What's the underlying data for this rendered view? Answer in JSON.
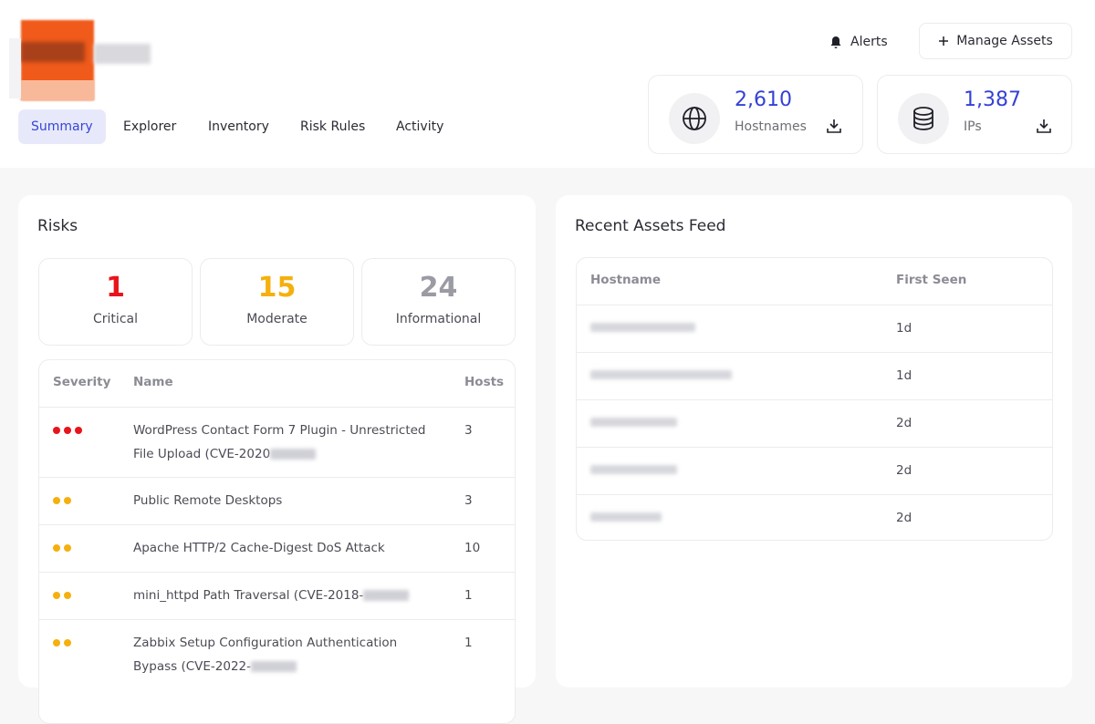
{
  "header": {
    "tabs": [
      "Summary",
      "Explorer",
      "Inventory",
      "Risk Rules",
      "Activity"
    ],
    "active_tab": 0,
    "alerts": "Alerts",
    "manage_assets": "Manage Assets"
  },
  "stats": [
    {
      "value": "2,610",
      "label": "Hostnames"
    },
    {
      "value": "1,387",
      "label": "IPs"
    }
  ],
  "risks": {
    "title": "Risks",
    "summary": [
      {
        "count": 1,
        "label": "Critical",
        "color": "#e8141c"
      },
      {
        "count": 15,
        "label": "Moderate",
        "color": "#f5b00f"
      },
      {
        "count": 24,
        "label": "Informational",
        "color": "#9a9ba3"
      }
    ],
    "table": {
      "columns": [
        "Severity",
        "Name",
        "Hosts"
      ],
      "rows": [
        {
          "dots": 3,
          "color": "#e8141c",
          "name": "WordPress Contact Form 7 Plugin - Unrestricted File Upload (CVE-2020",
          "hosts": 3
        },
        {
          "dots": 2,
          "color": "#f5b00f",
          "name": "Public Remote Desktops",
          "hosts": 3
        },
        {
          "dots": 2,
          "color": "#f5b00f",
          "name": "Apache HTTP/2 Cache-Digest DoS Attack",
          "hosts": 10
        },
        {
          "dots": 2,
          "color": "#f5b00f",
          "name": "mini_httpd Path Traversal (CVE-2018-",
          "hosts": 1
        },
        {
          "dots": 2,
          "color": "#f5b00f",
          "name": "Zabbix Setup Configuration Authentication Bypass (CVE-2022-",
          "hosts": 1
        }
      ]
    }
  },
  "feed": {
    "title": "Recent Assets Feed",
    "columns": [
      "Hostname",
      "First Seen"
    ],
    "rows": [
      {
        "first_seen": "1d"
      },
      {
        "first_seen": "1d"
      },
      {
        "first_seen": "2d"
      },
      {
        "first_seen": "2d"
      },
      {
        "first_seen": "2d"
      }
    ]
  }
}
